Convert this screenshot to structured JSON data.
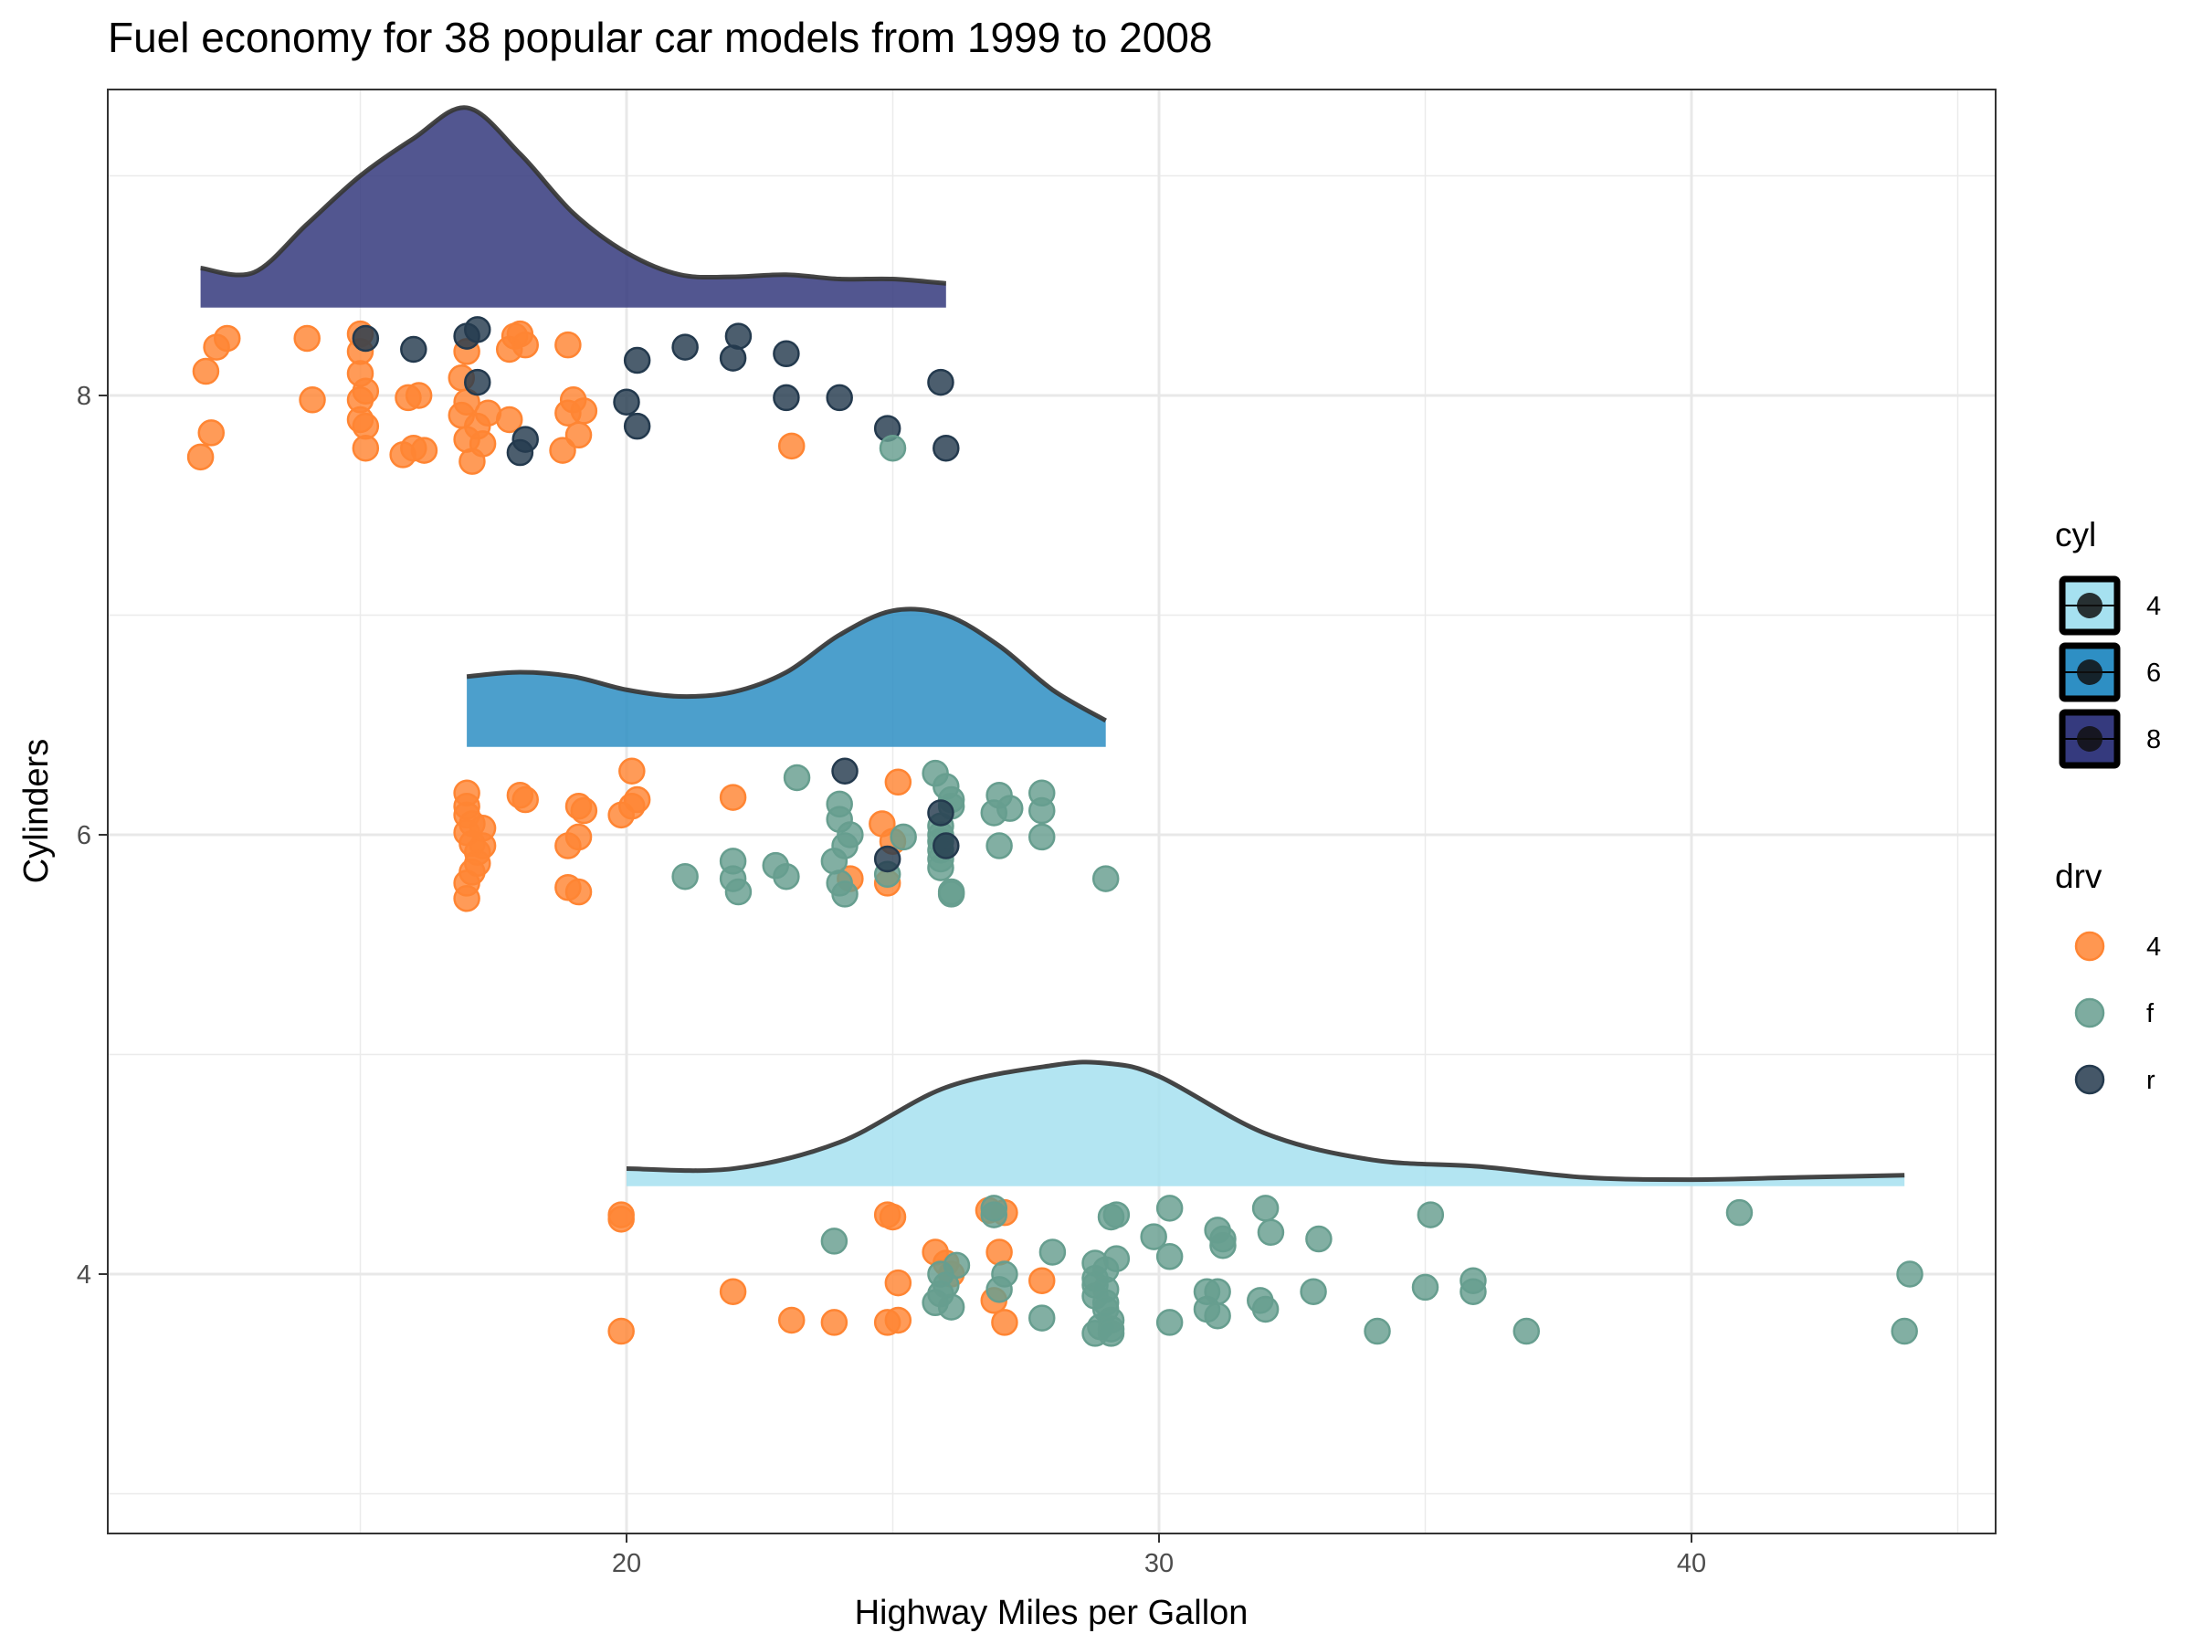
{
  "chart_data": {
    "type": "raincloud",
    "title": "Fuel economy for 38 popular car models from 1999 to 2008",
    "xlabel": "Highway Miles per Gallon",
    "ylabel": "Cylinders",
    "xlim": [
      10.5,
      46
    ],
    "ylim": [
      2.8,
      9.3
    ],
    "x_ticks": [
      20,
      30,
      40
    ],
    "y_ticks": [
      4,
      6,
      8
    ],
    "grid": true,
    "legend_position": "right",
    "legends": [
      {
        "title": "cyl",
        "entries": [
          {
            "label": "4",
            "color": "#A6E1F0"
          },
          {
            "label": "6",
            "color": "#2E8FC4"
          },
          {
            "label": "8",
            "color": "#353A7E"
          }
        ]
      },
      {
        "title": "drv",
        "entries": [
          {
            "label": "4",
            "color": "#FF8533"
          },
          {
            "label": "f",
            "color": "#679E8F"
          },
          {
            "label": "r",
            "color": "#243A4E"
          }
        ]
      }
    ],
    "densities": [
      {
        "cyl": "8",
        "color": "#353A7E",
        "baseline": 8.4,
        "x": [
          12,
          13,
          14,
          15,
          16,
          17,
          18,
          19,
          20,
          21,
          22,
          23,
          24,
          25,
          26
        ],
        "y": [
          8.58,
          8.56,
          8.78,
          9.0,
          9.17,
          9.31,
          9.1,
          8.83,
          8.65,
          8.55,
          8.54,
          8.55,
          8.53,
          8.53,
          8.51
        ]
      },
      {
        "cyl": "6",
        "color": "#2E8FC4",
        "baseline": 6.4,
        "x": [
          17,
          18,
          19,
          20,
          21,
          22,
          23,
          24,
          25,
          26,
          27,
          28,
          29
        ],
        "y": [
          6.72,
          6.74,
          6.72,
          6.66,
          6.63,
          6.65,
          6.74,
          6.91,
          7.02,
          7.0,
          6.86,
          6.66,
          6.52
        ]
      },
      {
        "cyl": "4",
        "color": "#A6E1F0",
        "baseline": 4.4,
        "x": [
          20,
          22,
          24,
          26,
          28,
          29,
          30,
          32,
          34,
          36,
          38,
          40,
          42,
          44
        ],
        "y": [
          4.48,
          4.48,
          4.6,
          4.85,
          4.95,
          4.96,
          4.9,
          4.64,
          4.52,
          4.49,
          4.44,
          4.43,
          4.44,
          4.45
        ]
      }
    ],
    "points": [
      {
        "x": 12,
        "y": 7.72,
        "drv": "4"
      },
      {
        "x": 12.1,
        "y": 8.11,
        "drv": "4"
      },
      {
        "x": 12.2,
        "y": 7.83,
        "drv": "4"
      },
      {
        "x": 12.3,
        "y": 8.22,
        "drv": "4"
      },
      {
        "x": 12.5,
        "y": 8.26,
        "drv": "4"
      },
      {
        "x": 14,
        "y": 8.26,
        "drv": "4"
      },
      {
        "x": 14.1,
        "y": 7.98,
        "drv": "4"
      },
      {
        "x": 15,
        "y": 8.28,
        "drv": "4"
      },
      {
        "x": 15,
        "y": 8.2,
        "drv": "4"
      },
      {
        "x": 15,
        "y": 8.1,
        "drv": "4"
      },
      {
        "x": 15,
        "y": 7.98,
        "drv": "4"
      },
      {
        "x": 15,
        "y": 7.89,
        "drv": "4"
      },
      {
        "x": 15.1,
        "y": 8.02,
        "drv": "4"
      },
      {
        "x": 15.1,
        "y": 7.76,
        "drv": "4"
      },
      {
        "x": 15.1,
        "y": 7.86,
        "drv": "4"
      },
      {
        "x": 15.9,
        "y": 7.99,
        "drv": "4"
      },
      {
        "x": 15.8,
        "y": 7.73,
        "drv": "4"
      },
      {
        "x": 16,
        "y": 7.76,
        "drv": "4"
      },
      {
        "x": 16.1,
        "y": 8.0,
        "drv": "4"
      },
      {
        "x": 16.2,
        "y": 7.75,
        "drv": "4"
      },
      {
        "x": 16.9,
        "y": 8.08,
        "drv": "4"
      },
      {
        "x": 17,
        "y": 8.2,
        "drv": "4"
      },
      {
        "x": 17,
        "y": 7.97,
        "drv": "4"
      },
      {
        "x": 16.9,
        "y": 7.91,
        "drv": "4"
      },
      {
        "x": 17,
        "y": 7.8,
        "drv": "4"
      },
      {
        "x": 17.1,
        "y": 7.7,
        "drv": "4"
      },
      {
        "x": 17.2,
        "y": 7.86,
        "drv": "4"
      },
      {
        "x": 17.3,
        "y": 7.78,
        "drv": "4"
      },
      {
        "x": 17.4,
        "y": 7.92,
        "drv": "4"
      },
      {
        "x": 17.8,
        "y": 8.21,
        "drv": "4"
      },
      {
        "x": 17.9,
        "y": 8.27,
        "drv": "4"
      },
      {
        "x": 18,
        "y": 8.28,
        "drv": "4"
      },
      {
        "x": 18.1,
        "y": 8.23,
        "drv": "4"
      },
      {
        "x": 17.8,
        "y": 7.89,
        "drv": "4"
      },
      {
        "x": 18.8,
        "y": 7.75,
        "drv": "4"
      },
      {
        "x": 18.9,
        "y": 8.23,
        "drv": "4"
      },
      {
        "x": 18.9,
        "y": 7.92,
        "drv": "4"
      },
      {
        "x": 19,
        "y": 7.98,
        "drv": "4"
      },
      {
        "x": 19.1,
        "y": 7.82,
        "drv": "4"
      },
      {
        "x": 19.2,
        "y": 7.93,
        "drv": "4"
      },
      {
        "x": 23.1,
        "y": 7.77,
        "drv": "4"
      },
      {
        "x": 16,
        "y": 8.21,
        "drv": "r"
      },
      {
        "x": 15.1,
        "y": 8.26,
        "drv": "r"
      },
      {
        "x": 17,
        "y": 8.27,
        "drv": "r"
      },
      {
        "x": 17.2,
        "y": 8.3,
        "drv": "r"
      },
      {
        "x": 17.2,
        "y": 8.06,
        "drv": "r"
      },
      {
        "x": 18,
        "y": 7.74,
        "drv": "r"
      },
      {
        "x": 18.1,
        "y": 7.8,
        "drv": "r"
      },
      {
        "x": 20,
        "y": 7.97,
        "drv": "r"
      },
      {
        "x": 20.2,
        "y": 7.86,
        "drv": "r"
      },
      {
        "x": 20.2,
        "y": 8.16,
        "drv": "r"
      },
      {
        "x": 21.1,
        "y": 8.22,
        "drv": "r"
      },
      {
        "x": 22,
        "y": 8.17,
        "drv": "r"
      },
      {
        "x": 22.1,
        "y": 8.27,
        "drv": "r"
      },
      {
        "x": 23,
        "y": 8.19,
        "drv": "r"
      },
      {
        "x": 23,
        "y": 7.99,
        "drv": "r"
      },
      {
        "x": 24,
        "y": 7.99,
        "drv": "r"
      },
      {
        "x": 24.9,
        "y": 7.85,
        "drv": "r"
      },
      {
        "x": 25.9,
        "y": 8.06,
        "drv": "r"
      },
      {
        "x": 26,
        "y": 7.76,
        "drv": "r"
      },
      {
        "x": 25,
        "y": 7.76,
        "drv": "f"
      },
      {
        "x": 17,
        "y": 6.19,
        "drv": "4"
      },
      {
        "x": 17,
        "y": 6.13,
        "drv": "4"
      },
      {
        "x": 17,
        "y": 6.09,
        "drv": "4"
      },
      {
        "x": 17.1,
        "y": 6.05,
        "drv": "4"
      },
      {
        "x": 17,
        "y": 6.01,
        "drv": "4"
      },
      {
        "x": 17.1,
        "y": 5.96,
        "drv": "4"
      },
      {
        "x": 17.2,
        "y": 5.92,
        "drv": "4"
      },
      {
        "x": 17.3,
        "y": 5.95,
        "drv": "4"
      },
      {
        "x": 17.2,
        "y": 5.87,
        "drv": "4"
      },
      {
        "x": 17.1,
        "y": 5.83,
        "drv": "4"
      },
      {
        "x": 17,
        "y": 5.78,
        "drv": "4"
      },
      {
        "x": 17,
        "y": 5.71,
        "drv": "4"
      },
      {
        "x": 17.3,
        "y": 6.03,
        "drv": "4"
      },
      {
        "x": 18,
        "y": 6.18,
        "drv": "4"
      },
      {
        "x": 18.1,
        "y": 6.16,
        "drv": "4"
      },
      {
        "x": 18.9,
        "y": 5.95,
        "drv": "4"
      },
      {
        "x": 18.9,
        "y": 5.76,
        "drv": "4"
      },
      {
        "x": 19.1,
        "y": 5.74,
        "drv": "4"
      },
      {
        "x": 19.1,
        "y": 5.99,
        "drv": "4"
      },
      {
        "x": 19.1,
        "y": 6.13,
        "drv": "4"
      },
      {
        "x": 19.2,
        "y": 6.11,
        "drv": "4"
      },
      {
        "x": 19.9,
        "y": 6.09,
        "drv": "4"
      },
      {
        "x": 20.1,
        "y": 6.13,
        "drv": "4"
      },
      {
        "x": 20.1,
        "y": 6.29,
        "drv": "4"
      },
      {
        "x": 20.2,
        "y": 6.16,
        "drv": "4"
      },
      {
        "x": 22,
        "y": 6.17,
        "drv": "4"
      },
      {
        "x": 24.8,
        "y": 6.05,
        "drv": "4"
      },
      {
        "x": 25.1,
        "y": 6.24,
        "drv": "4"
      },
      {
        "x": 25,
        "y": 5.97,
        "drv": "4"
      },
      {
        "x": 24.9,
        "y": 5.78,
        "drv": "4"
      },
      {
        "x": 24.2,
        "y": 5.8,
        "drv": "4"
      },
      {
        "x": 21.1,
        "y": 5.81,
        "drv": "f"
      },
      {
        "x": 22,
        "y": 5.88,
        "drv": "f"
      },
      {
        "x": 22,
        "y": 5.8,
        "drv": "f"
      },
      {
        "x": 22.1,
        "y": 5.74,
        "drv": "f"
      },
      {
        "x": 22.8,
        "y": 5.86,
        "drv": "f"
      },
      {
        "x": 23,
        "y": 5.81,
        "drv": "f"
      },
      {
        "x": 23.2,
        "y": 6.26,
        "drv": "f"
      },
      {
        "x": 23.9,
        "y": 5.88,
        "drv": "f"
      },
      {
        "x": 24,
        "y": 6.14,
        "drv": "f"
      },
      {
        "x": 24,
        "y": 6.07,
        "drv": "f"
      },
      {
        "x": 24.1,
        "y": 5.95,
        "drv": "f"
      },
      {
        "x": 24.2,
        "y": 6.0,
        "drv": "f"
      },
      {
        "x": 24,
        "y": 5.78,
        "drv": "f"
      },
      {
        "x": 24.1,
        "y": 5.73,
        "drv": "f"
      },
      {
        "x": 24.9,
        "y": 5.82,
        "drv": "f"
      },
      {
        "x": 25.2,
        "y": 5.99,
        "drv": "f"
      },
      {
        "x": 25.8,
        "y": 6.28,
        "drv": "f"
      },
      {
        "x": 26,
        "y": 6.22,
        "drv": "f"
      },
      {
        "x": 26.1,
        "y": 6.16,
        "drv": "f"
      },
      {
        "x": 26.1,
        "y": 6.13,
        "drv": "f"
      },
      {
        "x": 25.9,
        "y": 6.04,
        "drv": "f"
      },
      {
        "x": 25.9,
        "y": 6.0,
        "drv": "f"
      },
      {
        "x": 25.9,
        "y": 5.97,
        "drv": "f"
      },
      {
        "x": 25.9,
        "y": 5.93,
        "drv": "f"
      },
      {
        "x": 25.9,
        "y": 5.89,
        "drv": "f"
      },
      {
        "x": 25.9,
        "y": 5.85,
        "drv": "f"
      },
      {
        "x": 26.1,
        "y": 5.74,
        "drv": "f"
      },
      {
        "x": 26.1,
        "y": 5.73,
        "drv": "f"
      },
      {
        "x": 26.9,
        "y": 6.1,
        "drv": "f"
      },
      {
        "x": 27,
        "y": 6.18,
        "drv": "f"
      },
      {
        "x": 27.2,
        "y": 6.12,
        "drv": "f"
      },
      {
        "x": 27,
        "y": 5.95,
        "drv": "f"
      },
      {
        "x": 27.8,
        "y": 6.19,
        "drv": "f"
      },
      {
        "x": 27.8,
        "y": 6.11,
        "drv": "f"
      },
      {
        "x": 27.8,
        "y": 5.99,
        "drv": "f"
      },
      {
        "x": 29,
        "y": 5.8,
        "drv": "f"
      },
      {
        "x": 24.1,
        "y": 6.29,
        "drv": "r"
      },
      {
        "x": 25.9,
        "y": 6.1,
        "drv": "r"
      },
      {
        "x": 26,
        "y": 5.95,
        "drv": "r"
      },
      {
        "x": 24.9,
        "y": 5.89,
        "drv": "r"
      },
      {
        "x": 19.9,
        "y": 4.27,
        "drv": "4"
      },
      {
        "x": 19.9,
        "y": 4.25,
        "drv": "4"
      },
      {
        "x": 19.9,
        "y": 3.74,
        "drv": "4"
      },
      {
        "x": 22,
        "y": 3.92,
        "drv": "4"
      },
      {
        "x": 23.1,
        "y": 3.79,
        "drv": "4"
      },
      {
        "x": 23.9,
        "y": 3.78,
        "drv": "4"
      },
      {
        "x": 24.9,
        "y": 4.27,
        "drv": "4"
      },
      {
        "x": 25,
        "y": 4.26,
        "drv": "4"
      },
      {
        "x": 25.1,
        "y": 3.96,
        "drv": "4"
      },
      {
        "x": 24.9,
        "y": 3.78,
        "drv": "4"
      },
      {
        "x": 25.1,
        "y": 3.79,
        "drv": "4"
      },
      {
        "x": 25.8,
        "y": 4.1,
        "drv": "4"
      },
      {
        "x": 26,
        "y": 4.05,
        "drv": "4"
      },
      {
        "x": 26.1,
        "y": 4.0,
        "drv": "4"
      },
      {
        "x": 26.8,
        "y": 4.29,
        "drv": "4"
      },
      {
        "x": 27.1,
        "y": 4.28,
        "drv": "4"
      },
      {
        "x": 27,
        "y": 4.1,
        "drv": "4"
      },
      {
        "x": 26.9,
        "y": 3.88,
        "drv": "4"
      },
      {
        "x": 27.1,
        "y": 3.78,
        "drv": "4"
      },
      {
        "x": 27.8,
        "y": 3.97,
        "drv": "4"
      },
      {
        "x": 23.9,
        "y": 4.15,
        "drv": "f"
      },
      {
        "x": 25.8,
        "y": 3.87,
        "drv": "f"
      },
      {
        "x": 25.9,
        "y": 3.91,
        "drv": "f"
      },
      {
        "x": 25.9,
        "y": 4.0,
        "drv": "f"
      },
      {
        "x": 26,
        "y": 3.95,
        "drv": "f"
      },
      {
        "x": 26.2,
        "y": 4.04,
        "drv": "f"
      },
      {
        "x": 26.1,
        "y": 3.85,
        "drv": "f"
      },
      {
        "x": 26.9,
        "y": 4.3,
        "drv": "f"
      },
      {
        "x": 26.9,
        "y": 4.27,
        "drv": "f"
      },
      {
        "x": 27,
        "y": 3.93,
        "drv": "f"
      },
      {
        "x": 27.1,
        "y": 4.0,
        "drv": "f"
      },
      {
        "x": 27.8,
        "y": 3.8,
        "drv": "f"
      },
      {
        "x": 28,
        "y": 4.1,
        "drv": "f"
      },
      {
        "x": 28.8,
        "y": 4.05,
        "drv": "f"
      },
      {
        "x": 28.8,
        "y": 3.98,
        "drv": "f"
      },
      {
        "x": 28.8,
        "y": 3.95,
        "drv": "f"
      },
      {
        "x": 28.8,
        "y": 3.9,
        "drv": "f"
      },
      {
        "x": 28.8,
        "y": 3.73,
        "drv": "f"
      },
      {
        "x": 28.9,
        "y": 3.76,
        "drv": "f"
      },
      {
        "x": 29,
        "y": 4.02,
        "drv": "f"
      },
      {
        "x": 29,
        "y": 3.93,
        "drv": "f"
      },
      {
        "x": 29,
        "y": 3.87,
        "drv": "f"
      },
      {
        "x": 29,
        "y": 3.84,
        "drv": "f"
      },
      {
        "x": 29.1,
        "y": 3.79,
        "drv": "f"
      },
      {
        "x": 29.1,
        "y": 3.75,
        "drv": "f"
      },
      {
        "x": 29.1,
        "y": 3.73,
        "drv": "f"
      },
      {
        "x": 29.1,
        "y": 4.26,
        "drv": "f"
      },
      {
        "x": 29.2,
        "y": 4.27,
        "drv": "f"
      },
      {
        "x": 29.2,
        "y": 4.07,
        "drv": "f"
      },
      {
        "x": 29.9,
        "y": 4.17,
        "drv": "f"
      },
      {
        "x": 30.2,
        "y": 4.3,
        "drv": "f"
      },
      {
        "x": 30.2,
        "y": 4.08,
        "drv": "f"
      },
      {
        "x": 30.2,
        "y": 3.78,
        "drv": "f"
      },
      {
        "x": 30.9,
        "y": 3.92,
        "drv": "f"
      },
      {
        "x": 30.9,
        "y": 3.84,
        "drv": "f"
      },
      {
        "x": 31.1,
        "y": 4.2,
        "drv": "f"
      },
      {
        "x": 31.2,
        "y": 4.16,
        "drv": "f"
      },
      {
        "x": 31.2,
        "y": 4.13,
        "drv": "f"
      },
      {
        "x": 31.1,
        "y": 3.92,
        "drv": "f"
      },
      {
        "x": 31.1,
        "y": 3.81,
        "drv": "f"
      },
      {
        "x": 31.9,
        "y": 3.88,
        "drv": "f"
      },
      {
        "x": 32,
        "y": 4.3,
        "drv": "f"
      },
      {
        "x": 32.1,
        "y": 4.19,
        "drv": "f"
      },
      {
        "x": 32,
        "y": 3.84,
        "drv": "f"
      },
      {
        "x": 33,
        "y": 4.16,
        "drv": "f"
      },
      {
        "x": 32.9,
        "y": 3.92,
        "drv": "f"
      },
      {
        "x": 34.1,
        "y": 3.74,
        "drv": "f"
      },
      {
        "x": 35.1,
        "y": 4.27,
        "drv": "f"
      },
      {
        "x": 35,
        "y": 3.94,
        "drv": "f"
      },
      {
        "x": 35.9,
        "y": 3.97,
        "drv": "f"
      },
      {
        "x": 35.9,
        "y": 3.92,
        "drv": "f"
      },
      {
        "x": 36.9,
        "y": 3.74,
        "drv": "f"
      },
      {
        "x": 40.9,
        "y": 4.28,
        "drv": "f"
      },
      {
        "x": 44,
        "y": 3.74,
        "drv": "f"
      },
      {
        "x": 44.1,
        "y": 4.0,
        "drv": "f"
      }
    ]
  }
}
